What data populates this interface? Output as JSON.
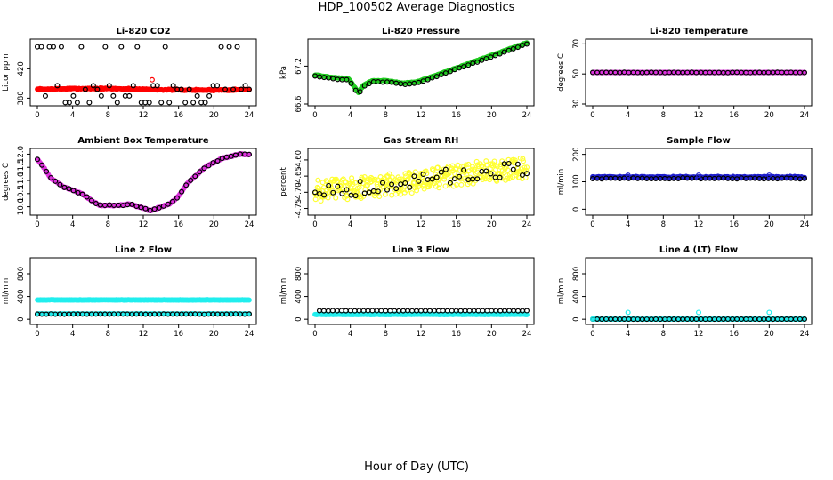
{
  "figure": {
    "title": "HDP_100502  Average Diagnostics",
    "xlabel": "Hour of Day (UTC)"
  },
  "colors": {
    "red": "#ff0000",
    "green": "#22cc22",
    "magenta": "#dd33dd",
    "yellow": "#ffff33",
    "blue": "#1f1fcc",
    "cyan": "#22eeee",
    "black": "#000000"
  },
  "chart_data": [
    {
      "type": "scatter",
      "title": "Li-820 CO2",
      "xlabel": "",
      "ylabel": "Licor ppm",
      "xlim": [
        0,
        24
      ],
      "ylim": [
        372,
        458
      ],
      "xticks": [
        "0",
        "4",
        "8",
        "12",
        "16",
        "20",
        "24"
      ],
      "yticks": [
        {
          "v": 380,
          "label": "380"
        },
        {
          "v": 420,
          "label": "420"
        }
      ],
      "series": [
        {
          "name": "all",
          "color": "red",
          "shape": "dot",
          "gen": "flat",
          "n": 240,
          "base": 392,
          "amp": 1,
          "noise": 1.4
        },
        {
          "name": "outlier",
          "color": "red",
          "shape": "ring",
          "points": [
            [
              13,
              405
            ]
          ]
        },
        {
          "name": "hourly",
          "color": "black",
          "shape": "ring",
          "gen": "levels",
          "n": 54,
          "levels": [
            374,
            383,
            392,
            397,
            450
          ],
          "seed": 3
        }
      ]
    },
    {
      "type": "scatter",
      "title": "Li-820 Pressure",
      "xlabel": "",
      "ylabel": "kPa",
      "xlim": [
        0,
        24
      ],
      "ylim": [
        66.6,
        67.6
      ],
      "xticks": [
        "0",
        "4",
        "8",
        "12",
        "16",
        "20",
        "24"
      ],
      "yticks": [
        {
          "v": 66.6,
          "label": "66.6"
        },
        {
          "v": 67.2,
          "label": "67.2"
        }
      ],
      "series": [
        {
          "name": "all",
          "color": "green",
          "shape": "dot",
          "gen": "curve",
          "n": 240,
          "noise": 0.008,
          "nodes": [
            [
              0,
              67.06
            ],
            [
              2,
              67.02
            ],
            [
              3.8,
              67.0
            ],
            [
              4.3,
              66.9
            ],
            [
              4.9,
              66.78
            ],
            [
              5.5,
              66.9
            ],
            [
              6.5,
              66.97
            ],
            [
              8,
              66.97
            ],
            [
              10,
              66.93
            ],
            [
              11.5,
              66.95
            ],
            [
              13,
              67.02
            ],
            [
              15,
              67.12
            ],
            [
              17,
              67.22
            ],
            [
              19,
              67.32
            ],
            [
              21,
              67.42
            ],
            [
              23,
              67.52
            ],
            [
              24,
              67.57
            ]
          ]
        },
        {
          "name": "hourly",
          "color": "black",
          "shape": "ring",
          "gen": "curve",
          "n": 48,
          "noise": 0.01,
          "offset": -0.02,
          "nodes": [
            [
              0,
              67.06
            ],
            [
              2,
              67.02
            ],
            [
              3.8,
              67.0
            ],
            [
              4.3,
              66.9
            ],
            [
              4.9,
              66.78
            ],
            [
              5.5,
              66.9
            ],
            [
              6.5,
              66.97
            ],
            [
              8,
              66.97
            ],
            [
              10,
              66.93
            ],
            [
              11.5,
              66.95
            ],
            [
              13,
              67.02
            ],
            [
              15,
              67.12
            ],
            [
              17,
              67.22
            ],
            [
              19,
              67.32
            ],
            [
              21,
              67.42
            ],
            [
              23,
              67.52
            ],
            [
              24,
              67.57
            ]
          ]
        }
      ]
    },
    {
      "type": "scatter",
      "title": "Li-820 Temperature",
      "xlabel": "",
      "ylabel": "degrees C",
      "xlim": [
        0,
        24
      ],
      "ylim": [
        30,
        72
      ],
      "xticks": [
        "0",
        "4",
        "8",
        "12",
        "16",
        "20",
        "24"
      ],
      "yticks": [
        {
          "v": 30,
          "label": "30"
        },
        {
          "v": 50,
          "label": "50"
        },
        {
          "v": 70,
          "label": "70"
        }
      ],
      "series": [
        {
          "name": "all",
          "color": "magenta",
          "shape": "dot",
          "gen": "flat",
          "n": 240,
          "base": 51,
          "amp": 0,
          "noise": 0.2
        },
        {
          "name": "hourly",
          "color": "black",
          "shape": "ring",
          "gen": "flat",
          "n": 48,
          "base": 51,
          "amp": 0,
          "noise": 0.2
        }
      ]
    },
    {
      "type": "scatter",
      "title": "Ambient Box Temperature",
      "xlabel": "",
      "ylabel": "degrees C",
      "xlim": [
        0,
        24
      ],
      "ylim": [
        9.75,
        12.15
      ],
      "xticks": [
        "0",
        "4",
        "8",
        "12",
        "16",
        "20",
        "24"
      ],
      "yticks": [
        {
          "v": 10.0,
          "label": "10.0"
        },
        {
          "v": 10.5,
          "label": "10.5"
        },
        {
          "v": 11.0,
          "label": "11.0"
        },
        {
          "v": 11.5,
          "label": "11.5"
        },
        {
          "v": 12.0,
          "label": "12.0"
        }
      ],
      "series": [
        {
          "name": "all",
          "color": "magenta",
          "shape": "dot",
          "gen": "curve",
          "n": 240,
          "noise": 0.03,
          "nodes": [
            [
              0,
              11.8
            ],
            [
              0.5,
              11.6
            ],
            [
              1.5,
              11.1
            ],
            [
              3,
              10.75
            ],
            [
              5,
              10.5
            ],
            [
              7,
              10.05
            ],
            [
              9,
              10.05
            ],
            [
              10.5,
              10.1
            ],
            [
              12,
              9.95
            ],
            [
              12.8,
              9.85
            ],
            [
              14,
              10.0
            ],
            [
              15,
              10.1
            ],
            [
              16,
              10.4
            ],
            [
              17,
              10.9
            ],
            [
              19,
              11.5
            ],
            [
              21,
              11.85
            ],
            [
              23,
              12.0
            ],
            [
              24,
              11.98
            ]
          ]
        },
        {
          "name": "hourly",
          "color": "black",
          "shape": "ring",
          "gen": "curve",
          "n": 48,
          "noise": 0.03,
          "nodes": [
            [
              0,
              11.8
            ],
            [
              0.5,
              11.6
            ],
            [
              1.5,
              11.1
            ],
            [
              3,
              10.75
            ],
            [
              5,
              10.5
            ],
            [
              7,
              10.05
            ],
            [
              9,
              10.05
            ],
            [
              10.5,
              10.1
            ],
            [
              12,
              9.95
            ],
            [
              12.8,
              9.85
            ],
            [
              14,
              10.0
            ],
            [
              15,
              10.1
            ],
            [
              16,
              10.4
            ],
            [
              17,
              10.9
            ],
            [
              19,
              11.5
            ],
            [
              21,
              11.85
            ],
            [
              23,
              12.0
            ],
            [
              24,
              11.98
            ]
          ]
        }
      ]
    },
    {
      "type": "scatter",
      "title": "Gas Stream RH",
      "xlabel": "",
      "ylabel": "percent",
      "xlim": [
        0,
        24
      ],
      "ylim": [
        -4.765,
        -4.57
      ],
      "xticks": [
        "0",
        "4",
        "8",
        "12",
        "16",
        "20",
        "24"
      ],
      "yticks": [
        {
          "v": -4.75,
          "label": "-4.75"
        },
        {
          "v": -4.7,
          "label": "-4.70"
        },
        {
          "v": -4.65,
          "label": "-4.65"
        },
        {
          "v": -4.6,
          "label": "-4.60"
        }
      ],
      "series": [
        {
          "name": "all",
          "color": "yellow",
          "shape": "ring",
          "gen": "curve",
          "n": 360,
          "noise": 0.034,
          "uniform": true,
          "nodes": [
            [
              0,
              -4.695
            ],
            [
              6,
              -4.685
            ],
            [
              12,
              -4.665
            ],
            [
              18,
              -4.64
            ],
            [
              24,
              -4.625
            ]
          ]
        },
        {
          "name": "hourly",
          "color": "black",
          "shape": "ring",
          "gen": "curve",
          "n": 48,
          "noise": 0.024,
          "uniform": true,
          "nodes": [
            [
              0,
              -4.695
            ],
            [
              6,
              -4.685
            ],
            [
              12,
              -4.665
            ],
            [
              18,
              -4.64
            ],
            [
              24,
              -4.625
            ]
          ]
        }
      ]
    },
    {
      "type": "scatter",
      "title": "Sample Flow",
      "xlabel": "",
      "ylabel": "ml/min",
      "xlim": [
        0,
        24
      ],
      "ylim": [
        -15,
        215
      ],
      "xticks": [
        "0",
        "4",
        "8",
        "12",
        "16",
        "20",
        "24"
      ],
      "yticks": [
        {
          "v": 0,
          "label": "0"
        },
        {
          "v": 100,
          "label": "100"
        },
        {
          "v": 200,
          "label": "200"
        }
      ],
      "series": [
        {
          "name": "all",
          "color": "blue",
          "shape": "dot",
          "gen": "flat",
          "n": 280,
          "base": 117,
          "amp": 0,
          "noise": 4
        },
        {
          "name": "hourly",
          "color": "black",
          "shape": "ring",
          "gen": "flat",
          "n": 48,
          "base": 112,
          "amp": 0,
          "noise": 3
        },
        {
          "name": "spikes",
          "color": "blue",
          "shape": "ring",
          "points": [
            [
              4,
              124
            ],
            [
              12,
              124
            ],
            [
              20,
              124
            ]
          ]
        }
      ]
    },
    {
      "type": "scatter",
      "title": "Line 2 Flow",
      "xlabel": "",
      "ylabel": "ml/min",
      "xlim": [
        0,
        24
      ],
      "ylim": [
        -60,
        1050
      ],
      "xticks": [
        "0",
        "4",
        "8",
        "12",
        "16",
        "20",
        "24"
      ],
      "yticks": [
        {
          "v": 0,
          "label": "0"
        },
        {
          "v": 400,
          "label": "400"
        },
        {
          "v": 800,
          "label": "800"
        }
      ],
      "series": [
        {
          "name": "upper",
          "color": "cyan",
          "shape": "dot",
          "gen": "flat",
          "n": 280,
          "base": 340,
          "amp": 0,
          "noise": 6
        },
        {
          "name": "lower",
          "color": "cyan",
          "shape": "dot",
          "gen": "flat",
          "n": 120,
          "base": 95,
          "amp": 0,
          "noise": 4
        },
        {
          "name": "hourly",
          "color": "black",
          "shape": "ring",
          "gen": "flat",
          "n": 48,
          "base": 90,
          "amp": 0,
          "noise": 4
        }
      ]
    },
    {
      "type": "scatter",
      "title": "Line 3 Flow",
      "xlabel": "",
      "ylabel": "ml/min",
      "xlim": [
        0,
        24
      ],
      "ylim": [
        -60,
        1050
      ],
      "xticks": [
        "0",
        "4",
        "8",
        "12",
        "16",
        "20",
        "24"
      ],
      "yticks": [
        {
          "v": 0,
          "label": "0"
        },
        {
          "v": 400,
          "label": "400"
        },
        {
          "v": 800,
          "label": "800"
        }
      ],
      "series": [
        {
          "name": "all",
          "color": "cyan",
          "shape": "dot",
          "gen": "flat",
          "n": 240,
          "base": 85,
          "amp": 0,
          "noise": 8
        },
        {
          "name": "hourly",
          "color": "black",
          "shape": "ring",
          "gen": "flat",
          "n": 48,
          "base": 150,
          "amp": 0,
          "noise": 4,
          "from": 0.5
        }
      ]
    },
    {
      "type": "scatter",
      "title": "Line 4 (LT) Flow",
      "xlabel": "",
      "ylabel": "ml/min",
      "xlim": [
        0,
        24
      ],
      "ylim": [
        -60,
        1050
      ],
      "xticks": [
        "0",
        "4",
        "8",
        "12",
        "16",
        "20",
        "24"
      ],
      "yticks": [
        {
          "v": 0,
          "label": "0"
        },
        {
          "v": 400,
          "label": "400"
        },
        {
          "v": 800,
          "label": "800"
        }
      ],
      "series": [
        {
          "name": "all",
          "color": "cyan",
          "shape": "dot",
          "gen": "flat",
          "n": 200,
          "base": 2,
          "amp": 0,
          "noise": 3
        },
        {
          "name": "hourly",
          "color": "black",
          "shape": "ring",
          "gen": "flat",
          "n": 48,
          "base": 2,
          "amp": 0,
          "noise": 2
        },
        {
          "name": "spikes",
          "color": "cyan",
          "shape": "ring",
          "points": [
            [
              0,
              5
            ],
            [
              4,
              120
            ],
            [
              12,
              120
            ],
            [
              20,
              120
            ]
          ]
        }
      ]
    }
  ]
}
